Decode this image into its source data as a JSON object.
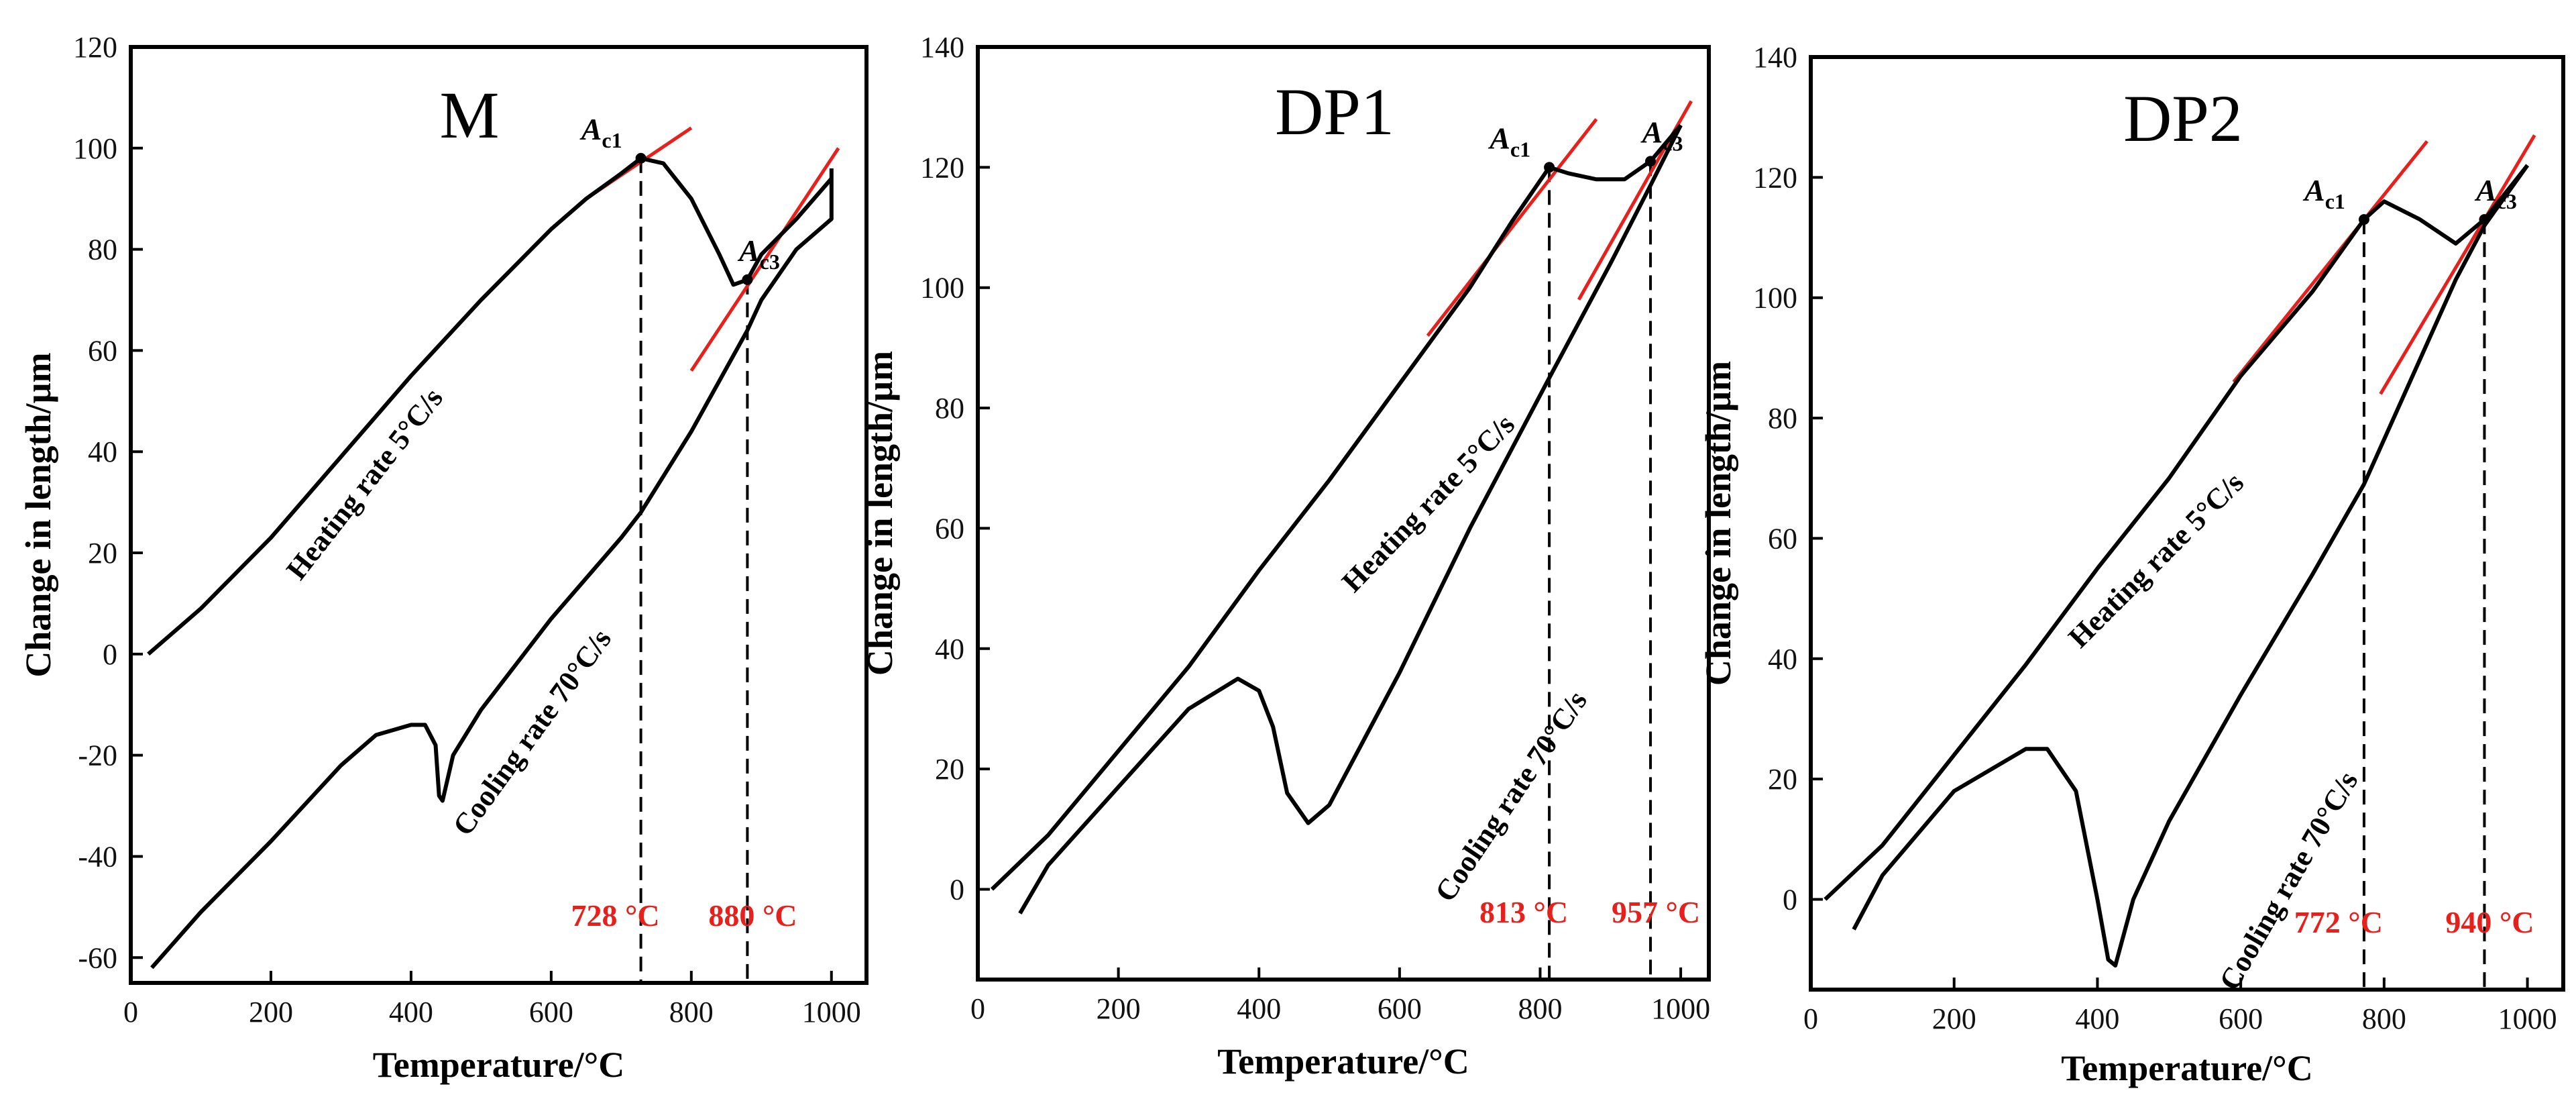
{
  "chart_data": [
    {
      "type": "line",
      "title": "M",
      "xlabel": "Temperature/°C",
      "ylabel": "Change in length/µm",
      "xlim": [
        0,
        1050
      ],
      "ylim": [
        -65,
        120
      ],
      "xticks": [
        0,
        200,
        400,
        600,
        800,
        1000
      ],
      "yticks": [
        -60,
        -40,
        -20,
        0,
        20,
        40,
        60,
        80,
        100,
        120
      ],
      "heating_label": "Heating rate 5°C/s",
      "cooling_label": "Cooling rate 70°C/s",
      "series": [
        {
          "name": "Heating rate 5°C/s",
          "x": [
            25,
            100,
            200,
            300,
            400,
            500,
            600,
            650,
            700,
            728,
            760,
            800,
            840,
            860,
            880,
            900,
            950,
            1000
          ],
          "y": [
            0,
            9,
            23,
            39,
            55,
            70,
            84,
            90,
            95,
            98,
            97,
            90,
            79,
            73,
            74,
            79,
            86,
            94
          ]
        },
        {
          "name": "Cooling rate 70°C/s",
          "x": [
            1000,
            1000,
            950,
            900,
            880,
            800,
            728,
            700,
            600,
            500,
            460,
            445,
            440,
            435,
            420,
            400,
            350,
            300,
            200,
            100,
            30
          ],
          "y": [
            96,
            86,
            80,
            70,
            64,
            44,
            28,
            23,
            7,
            -11,
            -20,
            -29,
            -28,
            -18,
            -14,
            -14,
            -16,
            -22,
            -37,
            -51,
            -62
          ]
        }
      ],
      "annotations": {
        "ac1": {
          "label": "A",
          "sub": "c1",
          "temp": 728,
          "y": 98,
          "text": "728 °C"
        },
        "ac3": {
          "label": "A",
          "sub": "c3",
          "temp": 880,
          "y": 74,
          "text": "880 °C"
        },
        "tangents": [
          {
            "x": [
              650,
              800
            ],
            "y": [
              90,
              104
            ]
          },
          {
            "x": [
              800,
              1010
            ],
            "y": [
              56,
              100
            ]
          }
        ]
      }
    },
    {
      "type": "line",
      "title": "DP1",
      "xlabel": "Temperature/°C",
      "ylabel": "Change in length/µm",
      "xlim": [
        0,
        1040
      ],
      "ylim": [
        -15,
        140
      ],
      "xticks": [
        0,
        200,
        400,
        600,
        800,
        1000
      ],
      "yticks": [
        0,
        20,
        40,
        60,
        80,
        100,
        120,
        140
      ],
      "heating_label": "Heating rate 5°C/s",
      "cooling_label": "Cooling rate 70°C/s",
      "series": [
        {
          "name": "Heating rate 5°C/s",
          "x": [
            20,
            100,
            200,
            300,
            400,
            500,
            600,
            700,
            760,
            813,
            840,
            880,
            920,
            957,
            1000
          ],
          "y": [
            0,
            9,
            23,
            37,
            53,
            68,
            84,
            100,
            111,
            120,
            119,
            118,
            118,
            121,
            127
          ]
        },
        {
          "name": "Cooling rate 70°C/s",
          "x": [
            1000,
            957,
            900,
            813,
            700,
            600,
            550,
            500,
            470,
            440,
            420,
            400,
            370,
            300,
            200,
            100,
            60
          ],
          "y": [
            127,
            117,
            104,
            85,
            60,
            36,
            25,
            14,
            11,
            16,
            27,
            33,
            35,
            30,
            17,
            4,
            -4
          ]
        }
      ],
      "annotations": {
        "ac1": {
          "label": "A",
          "sub": "c1",
          "temp": 813,
          "y": 120,
          "text": "813 °C"
        },
        "ac3": {
          "label": "A",
          "sub": "c3",
          "temp": 957,
          "y": 121,
          "text": "957 °C"
        },
        "tangents": [
          {
            "x": [
              640,
              880
            ],
            "y": [
              92,
              128
            ]
          },
          {
            "x": [
              855,
              1015
            ],
            "y": [
              98,
              131
            ]
          }
        ]
      }
    },
    {
      "type": "line",
      "title": "DP2",
      "xlabel": "Temperature/°C",
      "ylabel": "Change in length/µm",
      "xlim": [
        0,
        1050
      ],
      "ylim": [
        -15,
        140
      ],
      "xticks": [
        0,
        200,
        400,
        600,
        800,
        1000
      ],
      "yticks": [
        0,
        20,
        40,
        60,
        80,
        100,
        120,
        140
      ],
      "heating_label": "Heating rate 5°C/s",
      "cooling_label": "Cooling rate 70°C/s",
      "series": [
        {
          "name": "Heating rate 5°C/s",
          "x": [
            20,
            100,
            200,
            300,
            400,
            500,
            600,
            700,
            772,
            800,
            850,
            900,
            940,
            1000
          ],
          "y": [
            0,
            9,
            24,
            39,
            55,
            70,
            87,
            101,
            113,
            116,
            113,
            109,
            113,
            122
          ]
        },
        {
          "name": "Cooling rate 70°C/s",
          "x": [
            1000,
            940,
            900,
            772,
            700,
            600,
            500,
            450,
            425,
            415,
            400,
            370,
            330,
            300,
            200,
            100,
            60
          ],
          "y": [
            122,
            112,
            103,
            69,
            54,
            34,
            13,
            0,
            -11,
            -10,
            0,
            18,
            25,
            25,
            18,
            4,
            -5
          ]
        }
      ],
      "annotations": {
        "ac1": {
          "label": "A",
          "sub": "c1",
          "temp": 772,
          "y": 113,
          "text": "772 °C"
        },
        "ac3": {
          "label": "A",
          "sub": "c3",
          "temp": 940,
          "y": 113,
          "text": "940 °C"
        },
        "tangents": [
          {
            "x": [
              590,
              860
            ],
            "y": [
              86,
              126
            ]
          },
          {
            "x": [
              795,
              1010
            ],
            "y": [
              84,
              127
            ]
          }
        ]
      }
    }
  ],
  "colors": {
    "curve": "#000000",
    "tangent": "#e8201c",
    "temp_label": "#e8201c"
  }
}
